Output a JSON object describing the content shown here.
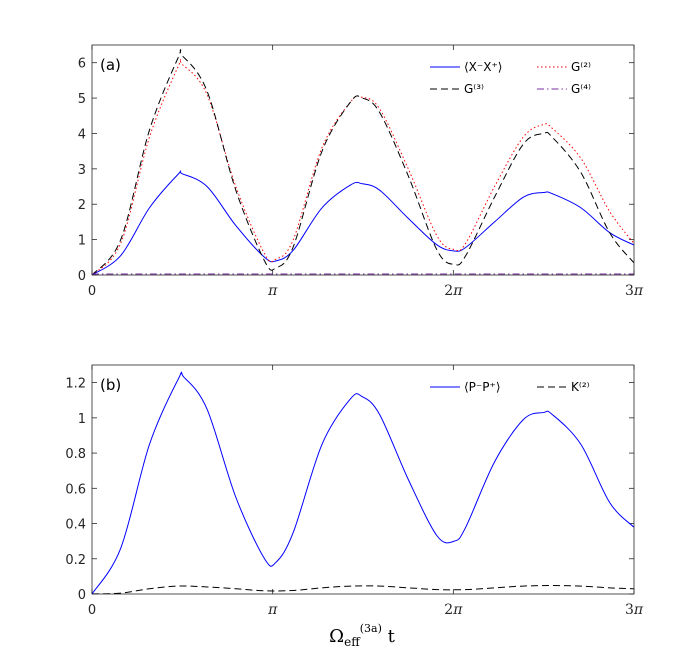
{
  "chart_data": [
    {
      "type": "line",
      "panel_label": "(a)",
      "xlim": [
        0,
        9.42477796
      ],
      "ylim": [
        0,
        6.5
      ],
      "x_ticks": [
        {
          "value": 0,
          "label": "0"
        },
        {
          "value": 3.14159265,
          "label": "π"
        },
        {
          "value": 6.28318531,
          "label": "2π"
        },
        {
          "value": 9.42477796,
          "label": "3π"
        }
      ],
      "y_ticks": [
        0,
        1,
        2,
        3,
        4,
        5,
        6
      ],
      "legend_position": "top-right",
      "series": [
        {
          "name": "⟨X⁻X⁺⟩",
          "color": "#0000ff",
          "dash": "solid",
          "x": [
            0,
            0.5,
            1.0,
            1.5,
            1.57,
            2.0,
            2.5,
            3.0,
            3.2,
            3.5,
            4.0,
            4.5,
            4.7,
            5.0,
            5.5,
            6.0,
            6.3,
            6.5,
            7.0,
            7.5,
            7.85,
            8.0,
            8.5,
            9.0,
            9.42
          ],
          "y": [
            0,
            0.55,
            1.9,
            2.85,
            2.86,
            2.5,
            1.4,
            0.5,
            0.4,
            0.7,
            1.9,
            2.55,
            2.58,
            2.4,
            1.6,
            0.85,
            0.68,
            0.78,
            1.5,
            2.2,
            2.33,
            2.3,
            1.9,
            1.2,
            0.85
          ]
        },
        {
          "name": "G⁽²⁾",
          "color": "#ff0000",
          "dash": "dotted",
          "x": [
            0,
            0.5,
            1.0,
            1.5,
            1.57,
            2.0,
            2.5,
            3.0,
            3.2,
            3.5,
            4.0,
            4.5,
            4.7,
            5.0,
            5.5,
            6.0,
            6.3,
            6.5,
            7.0,
            7.5,
            7.85,
            8.0,
            8.5,
            9.0,
            9.42
          ],
          "y": [
            0,
            0.9,
            3.9,
            5.9,
            5.95,
            5.1,
            2.5,
            0.6,
            0.45,
            1.0,
            3.6,
            4.9,
            5.02,
            4.7,
            3.0,
            1.1,
            0.72,
            0.9,
            2.5,
            3.9,
            4.25,
            4.15,
            3.3,
            1.8,
            0.9
          ]
        },
        {
          "name": "G⁽³⁾",
          "color": "#000000",
          "dash": "dashed",
          "x": [
            0,
            0.5,
            1.0,
            1.5,
            1.57,
            2.0,
            2.5,
            3.0,
            3.2,
            3.5,
            4.0,
            4.5,
            4.7,
            5.0,
            5.5,
            6.0,
            6.3,
            6.5,
            7.0,
            7.5,
            7.85,
            8.0,
            8.5,
            9.0,
            9.42
          ],
          "y": [
            0,
            1.0,
            4.1,
            6.15,
            6.2,
            5.2,
            2.4,
            0.4,
            0.2,
            0.8,
            3.5,
            4.9,
            5.0,
            4.6,
            2.8,
            0.7,
            0.3,
            0.55,
            2.2,
            3.7,
            4.0,
            3.9,
            2.9,
            1.2,
            0.35
          ]
        },
        {
          "name": "G⁽⁴⁾",
          "color": "#7b2fa0",
          "dash": "dashdot",
          "x": [
            0,
            9.42
          ],
          "y": [
            0.03,
            0.03
          ]
        }
      ]
    },
    {
      "type": "line",
      "panel_label": "(b)",
      "xlim": [
        0,
        9.42477796
      ],
      "ylim": [
        0,
        1.3
      ],
      "x_ticks": [
        {
          "value": 0,
          "label": "0"
        },
        {
          "value": 3.14159265,
          "label": "π"
        },
        {
          "value": 6.28318531,
          "label": "2π"
        },
        {
          "value": 9.42477796,
          "label": "3π"
        }
      ],
      "y_ticks": [
        0,
        0.2,
        0.4,
        0.6,
        0.8,
        1,
        1.2
      ],
      "xlabel": "Ω_eff^(3a) t",
      "legend_position": "top-right",
      "series": [
        {
          "name": "⟨P⁻P⁺⟩",
          "color": "#0000ff",
          "dash": "solid",
          "x": [
            0,
            0.5,
            1.0,
            1.5,
            1.6,
            2.0,
            2.5,
            3.0,
            3.2,
            3.5,
            4.0,
            4.5,
            4.7,
            5.0,
            5.5,
            6.0,
            6.3,
            6.5,
            7.0,
            7.5,
            7.85,
            8.0,
            8.5,
            9.0,
            9.42
          ],
          "y": [
            0,
            0.26,
            0.85,
            1.22,
            1.23,
            1.05,
            0.55,
            0.2,
            0.18,
            0.35,
            0.85,
            1.11,
            1.12,
            1.02,
            0.65,
            0.33,
            0.3,
            0.38,
            0.75,
            0.99,
            1.03,
            1.02,
            0.85,
            0.52,
            0.38
          ]
        },
        {
          "name": "K⁽²⁾",
          "color": "#000000",
          "dash": "dashed",
          "x": [
            0,
            0.5,
            1.0,
            1.5,
            2.0,
            2.5,
            3.0,
            3.5,
            4.0,
            4.5,
            5.0,
            5.5,
            6.0,
            6.5,
            7.0,
            7.5,
            8.0,
            8.5,
            9.0,
            9.42
          ],
          "y": [
            0,
            0.005,
            0.03,
            0.045,
            0.04,
            0.03,
            0.018,
            0.02,
            0.035,
            0.045,
            0.045,
            0.035,
            0.025,
            0.025,
            0.035,
            0.045,
            0.048,
            0.045,
            0.035,
            0.03
          ]
        }
      ]
    }
  ]
}
